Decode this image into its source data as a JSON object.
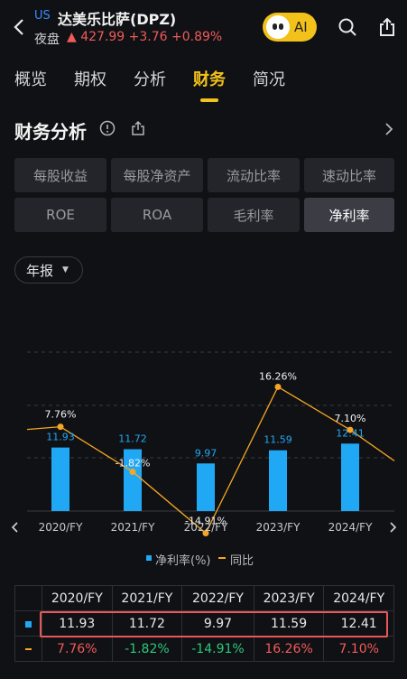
{
  "header": {
    "market_badge": "US",
    "ticker_name": "达美乐比萨(DPZ)",
    "session_label": "夜盘",
    "quote": "▲ 427.99 +3.76 +0.89%",
    "ai_label": "AI",
    "icons": [
      "back-icon",
      "search-icon",
      "share-icon"
    ]
  },
  "tabs": [
    {
      "label": "概览"
    },
    {
      "label": "期权"
    },
    {
      "label": "分析"
    },
    {
      "label": "财务"
    },
    {
      "label": "简况"
    }
  ],
  "active_tab": "财务",
  "section": {
    "title": "财务分析"
  },
  "metrics": [
    {
      "label": "每股收益"
    },
    {
      "label": "每股净资产"
    },
    {
      "label": "流动比率"
    },
    {
      "label": "速动比率"
    },
    {
      "label": "ROE"
    },
    {
      "label": "ROA"
    },
    {
      "label": "毛利率"
    },
    {
      "label": "净利率"
    }
  ],
  "active_metric": "净利率",
  "period_selector": {
    "value": "年报"
  },
  "chart_data": {
    "type": "bar",
    "categories": [
      "2020/FY",
      "2021/FY",
      "2022/FY",
      "2023/FY",
      "2024/FY"
    ],
    "series": [
      {
        "name": "净利率(%)",
        "type": "bar",
        "color": "#21a8f5",
        "values": [
          11.93,
          11.72,
          9.97,
          11.59,
          12.41
        ],
        "labels": [
          "11.93",
          "11.72",
          "9.97",
          "11.59",
          "12.41"
        ]
      },
      {
        "name": "同比",
        "type": "line",
        "color": "#f5a623",
        "values": [
          7.76,
          -1.82,
          -14.91,
          16.26,
          7.1
        ],
        "labels": [
          "7.76%",
          "-1.82%",
          "-14.91%",
          "16.26%",
          "7.10%"
        ]
      }
    ],
    "grid": true,
    "legend_placement": "bottom-center"
  },
  "legend": {
    "bar": "净利率(%)",
    "line": "同比"
  },
  "table": {
    "headers": [
      "2020/FY",
      "2021/FY",
      "2022/FY",
      "2023/FY",
      "2024/FY"
    ],
    "bar_row": [
      "11.93",
      "11.72",
      "9.97",
      "11.59",
      "12.41"
    ],
    "yoy_row": [
      "7.76%",
      "-1.82%",
      "-14.91%",
      "16.26%",
      "7.10%"
    ]
  }
}
